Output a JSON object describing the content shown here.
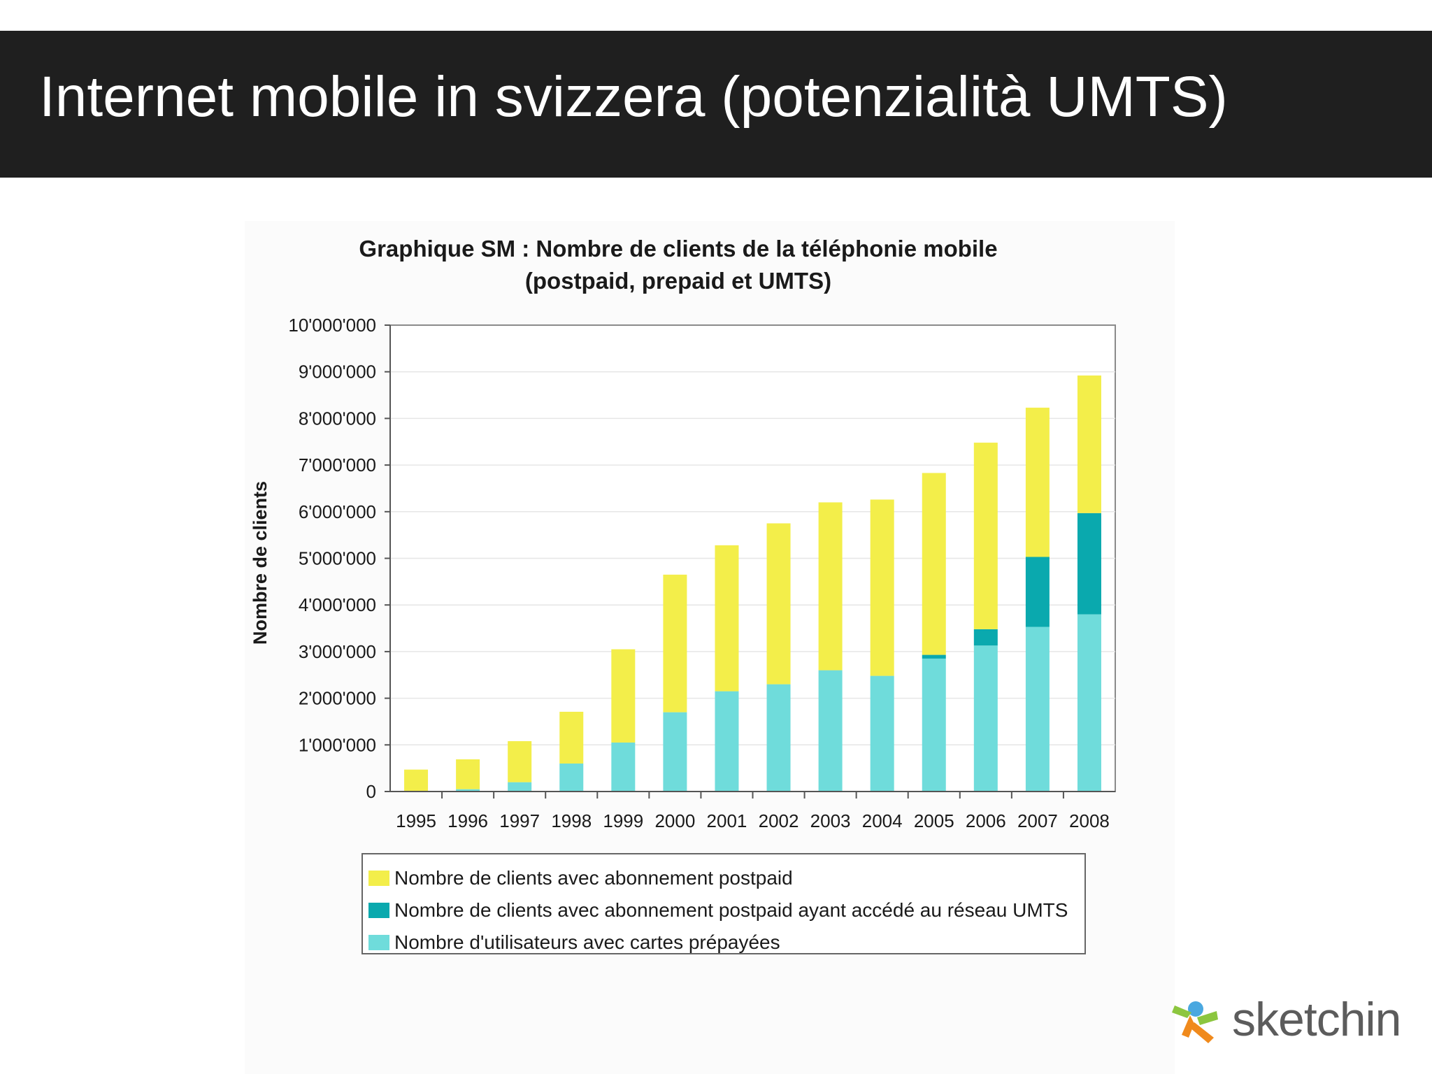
{
  "slide": {
    "title": "Internet mobile in svizzera (potenzialità UMTS)",
    "logo_text": "sketchin"
  },
  "colors": {
    "header_bg": "#1f1f1f",
    "postpaid": "#f3ee4a",
    "umts": "#0aa9ae",
    "prepaid": "#6fdcdb",
    "logo_orange": "#f08a1c",
    "logo_green": "#8cc63f",
    "logo_blue": "#4aa8e0"
  },
  "chart_data": {
    "type": "bar",
    "stacked": true,
    "title": "Graphique SM : Nombre de clients de la téléphonie mobile",
    "subtitle": "(postpaid, prepaid et UMTS)",
    "ylabel": "Nombre de clients",
    "xlabel": "",
    "ylim": [
      0,
      10000000
    ],
    "yticks": [
      0,
      1000000,
      2000000,
      3000000,
      4000000,
      5000000,
      6000000,
      7000000,
      8000000,
      9000000,
      10000000
    ],
    "ytick_labels": [
      "0",
      "1'000'000",
      "2'000'000",
      "3'000'000",
      "4'000'000",
      "5'000'000",
      "6'000'000",
      "7'000'000",
      "8'000'000",
      "9'000'000",
      "10'000'000"
    ],
    "categories": [
      "1995",
      "1996",
      "1997",
      "1998",
      "1999",
      "2000",
      "2001",
      "2002",
      "2003",
      "2004",
      "2005",
      "2006",
      "2007",
      "2008"
    ],
    "grid": true,
    "legend_position": "bottom",
    "series": [
      {
        "name": "Nombre d'utilisateurs avec cartes prépayées",
        "color": "#6fdcdb",
        "values": [
          10000,
          50000,
          200000,
          600000,
          1050000,
          1700000,
          2150000,
          2300000,
          2600000,
          2480000,
          2850000,
          3130000,
          3530000,
          3800000
        ]
      },
      {
        "name": "Nombre de clients avec abonnement postpaid ayant accédé au réseau UMTS",
        "color": "#0aa9ae",
        "values": [
          0,
          0,
          0,
          0,
          0,
          0,
          0,
          0,
          0,
          0,
          80000,
          350000,
          1500000,
          2170000
        ]
      },
      {
        "name": "Nombre de clients avec abonnement postpaid",
        "color": "#f3ee4a",
        "values": [
          460000,
          640000,
          880000,
          1110000,
          2000000,
          2950000,
          3130000,
          3450000,
          3600000,
          3780000,
          3900000,
          4000000,
          3200000,
          2950000
        ]
      }
    ],
    "legend_order": [
      "Nombre de clients avec abonnement postpaid",
      "Nombre de clients avec abonnement postpaid ayant accédé au réseau UMTS",
      "Nombre d'utilisateurs avec cartes prépayées"
    ]
  }
}
